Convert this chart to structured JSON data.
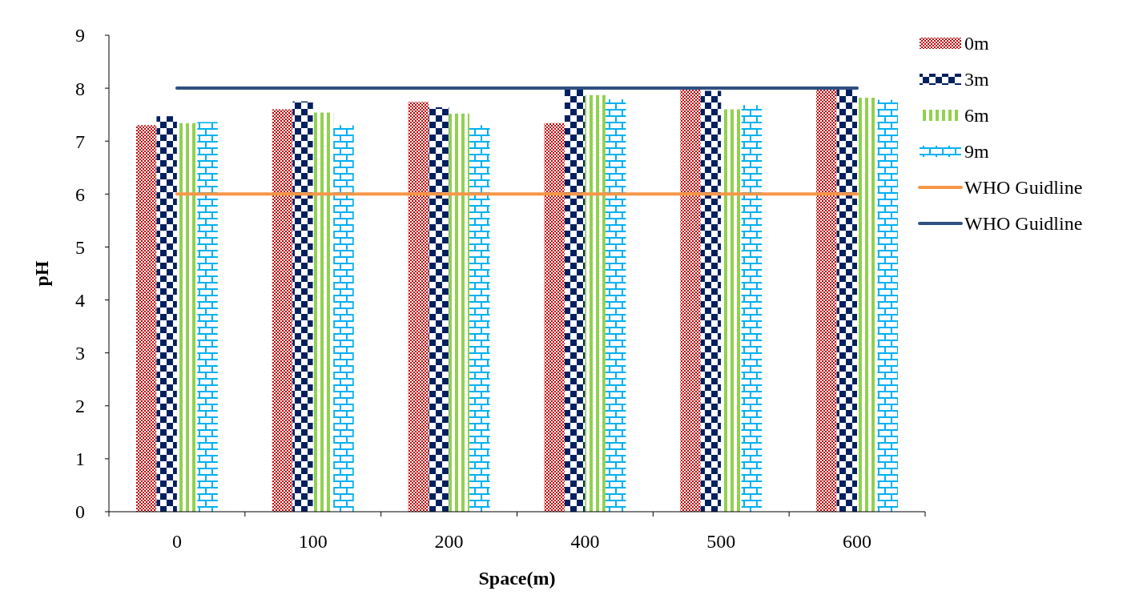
{
  "chart_data": {
    "type": "bar",
    "xlabel": "Space(m)",
    "ylabel": "pH",
    "categories": [
      "0",
      "100",
      "200",
      "400",
      "500",
      "600"
    ],
    "ylim": [
      0,
      9
    ],
    "yticks": [
      0,
      1,
      2,
      3,
      4,
      5,
      6,
      7,
      8,
      9
    ],
    "grid": false,
    "legend": "right",
    "series": [
      {
        "name": "0m",
        "color": "#c00000",
        "values": [
          7.3,
          7.6,
          7.74,
          7.34,
          7.97,
          8.0
        ]
      },
      {
        "name": "3m",
        "color": "#002060",
        "values": [
          7.47,
          7.75,
          7.64,
          8.0,
          7.95,
          8.0
        ]
      },
      {
        "name": "6m",
        "color": "#92d050",
        "values": [
          7.34,
          7.54,
          7.52,
          7.87,
          7.6,
          7.82
        ]
      },
      {
        "name": "9m",
        "color": "#00b0f0",
        "values": [
          7.36,
          7.3,
          7.3,
          7.79,
          7.68,
          7.78
        ]
      },
      {
        "name": "WHO Guidline",
        "type": "line",
        "color": "#f79646",
        "values": [
          6,
          6,
          6,
          6,
          6,
          6
        ]
      },
      {
        "name": "WHO Guidline",
        "type": "line",
        "color": "#2f5080",
        "values": [
          8,
          8,
          8,
          8,
          8,
          8
        ]
      }
    ]
  }
}
